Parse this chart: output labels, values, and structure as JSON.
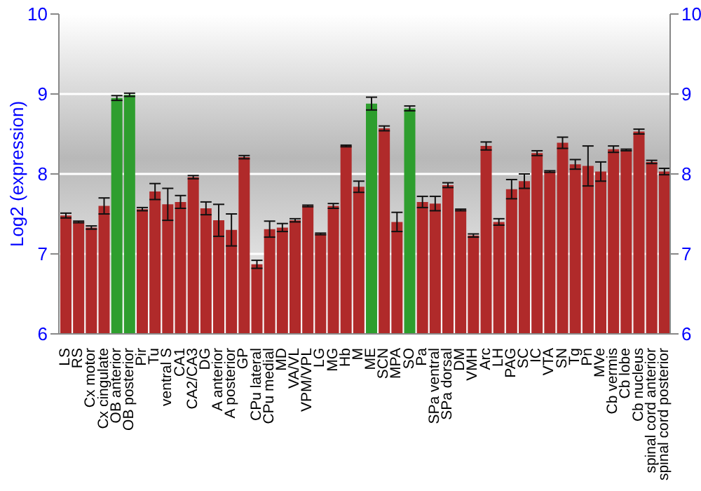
{
  "chart_data": {
    "type": "bar",
    "ylabel": "Log2 (expression)",
    "categories": [
      "LS",
      "RS",
      "Cx motor",
      "Cx cingulate",
      "OB anterior",
      "OB posterior",
      "Pir",
      "Tu",
      "ventral S",
      "CA1",
      "CA2/CA3",
      "DG",
      "A anterior",
      "A posterior",
      "GP",
      "CPu lateral",
      "CPu medial",
      "MD",
      "VA/VL",
      "VPM/VPL",
      "LG",
      "MG",
      "Hb",
      "M",
      "ME",
      "SCN",
      "MPA",
      "SO",
      "Pa",
      "SPa ventral",
      "SPa dorsal",
      "DM",
      "VMH",
      "Arc",
      "LH",
      "PAG",
      "SC",
      "IC",
      "VTA",
      "SN",
      "Tg",
      "Pn",
      "MVe",
      "Cb vermis",
      "Cb lobe",
      "Cb nucleus",
      "spinal cord anterior",
      "spinal cord posterior"
    ],
    "values": [
      7.48,
      7.4,
      7.33,
      7.6,
      8.95,
      8.99,
      7.56,
      7.78,
      7.62,
      7.65,
      7.96,
      7.57,
      7.42,
      7.3,
      8.21,
      6.87,
      7.31,
      7.33,
      7.42,
      7.6,
      7.25,
      7.6,
      8.35,
      7.84,
      8.88,
      8.57,
      7.4,
      8.82,
      7.65,
      7.63,
      7.86,
      7.55,
      7.23,
      8.35,
      7.4,
      7.81,
      7.91,
      8.26,
      8.03,
      8.39,
      8.12,
      8.1,
      8.03,
      8.31,
      8.3,
      8.53,
      8.15,
      8.03
    ],
    "errors": [
      0.03,
      0.01,
      0.02,
      0.1,
      0.03,
      0.02,
      0.02,
      0.1,
      0.2,
      0.08,
      0.02,
      0.08,
      0.2,
      0.2,
      0.02,
      0.05,
      0.1,
      0.05,
      0.02,
      0.01,
      0.01,
      0.03,
      0.01,
      0.07,
      0.08,
      0.03,
      0.12,
      0.03,
      0.07,
      0.09,
      0.03,
      0.01,
      0.02,
      0.05,
      0.04,
      0.12,
      0.09,
      0.03,
      0.01,
      0.07,
      0.06,
      0.25,
      0.12,
      0.04,
      0.01,
      0.03,
      0.02,
      0.04
    ],
    "colors": [
      "#b02a2a",
      "#b02a2a",
      "#b02a2a",
      "#b02a2a",
      "#2e9e2e",
      "#2e9e2e",
      "#b02a2a",
      "#b02a2a",
      "#b02a2a",
      "#b02a2a",
      "#b02a2a",
      "#b02a2a",
      "#b02a2a",
      "#b02a2a",
      "#b02a2a",
      "#b02a2a",
      "#b02a2a",
      "#b02a2a",
      "#b02a2a",
      "#b02a2a",
      "#b02a2a",
      "#b02a2a",
      "#b02a2a",
      "#b02a2a",
      "#2e9e2e",
      "#b02a2a",
      "#b02a2a",
      "#2e9e2e",
      "#b02a2a",
      "#b02a2a",
      "#b02a2a",
      "#b02a2a",
      "#b02a2a",
      "#b02a2a",
      "#b02a2a",
      "#b02a2a",
      "#b02a2a",
      "#b02a2a",
      "#b02a2a",
      "#b02a2a",
      "#b02a2a",
      "#b02a2a",
      "#b02a2a",
      "#b02a2a",
      "#b02a2a",
      "#b02a2a",
      "#b02a2a",
      "#b02a2a"
    ],
    "ylim": [
      6,
      10
    ],
    "yticks": [
      6,
      7,
      8,
      9,
      10
    ],
    "y2lim": [
      6,
      10
    ],
    "y2ticks": [
      6,
      7,
      8,
      9,
      10
    ],
    "grid": "y"
  }
}
